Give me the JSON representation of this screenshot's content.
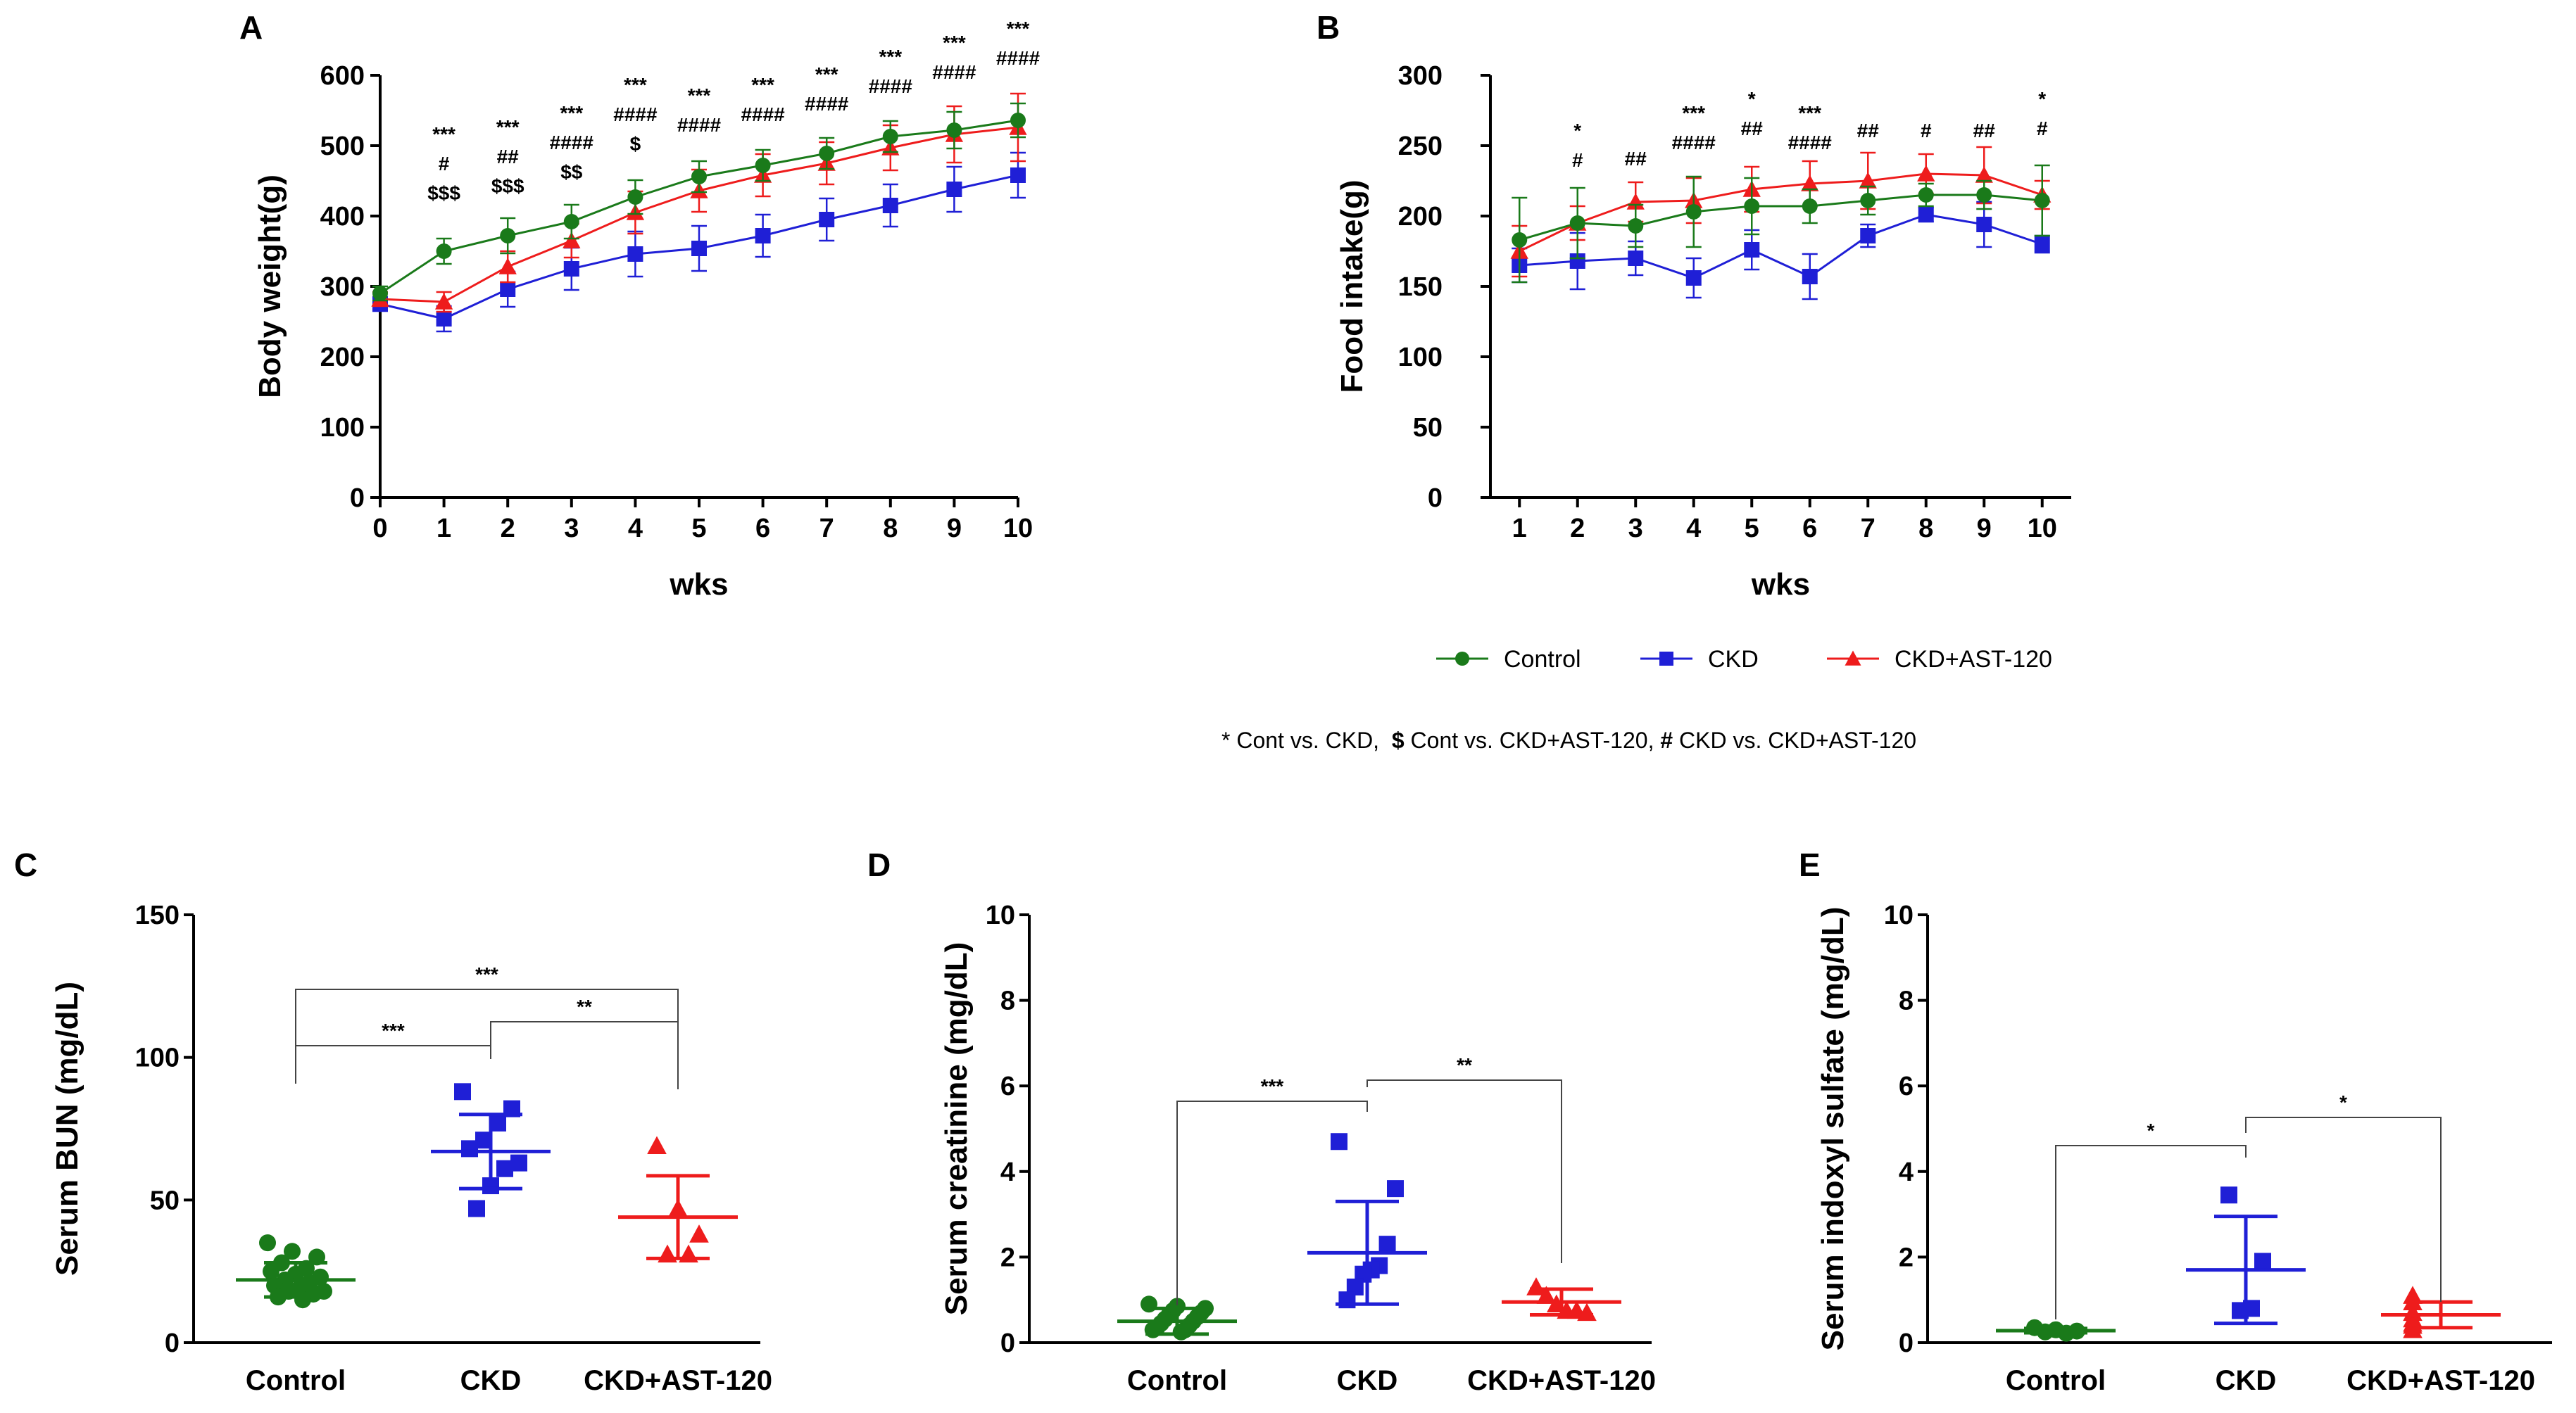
{
  "colors": {
    "control": "#1a7a1a",
    "ckd": "#1f1fd6",
    "ast": "#ee1c1c"
  },
  "legend": {
    "items": [
      {
        "key": "control",
        "label": "Control",
        "marker": "circle"
      },
      {
        "key": "ckd",
        "label": "CKD",
        "marker": "square"
      },
      {
        "key": "ast",
        "label": "CKD+AST-120",
        "marker": "triangle"
      }
    ],
    "note_parts": [
      {
        "text": "* ",
        "bold": false
      },
      {
        "text": "Cont vs. CKD,  ",
        "bold": false
      },
      {
        "text": "$",
        "bold": true
      },
      {
        "text": " Cont vs. CKD+AST-120, ",
        "bold": false
      },
      {
        "text": "#",
        "bold": true
      },
      {
        "text": " CKD vs. CKD+AST-120",
        "bold": false
      }
    ]
  },
  "chart_data": [
    {
      "panel": "A",
      "type": "line",
      "xlabel": "wks",
      "ylabel": "Body weight(g)",
      "xlim": [
        0,
        10
      ],
      "ylim": [
        0,
        600
      ],
      "yticks": [
        0,
        100,
        200,
        300,
        400,
        500,
        600
      ],
      "x": [
        0,
        1,
        2,
        3,
        4,
        5,
        6,
        7,
        8,
        9,
        10
      ],
      "series": [
        {
          "key": "control",
          "name": "Control",
          "values": [
            290,
            350,
            372,
            392,
            427,
            456,
            472,
            489,
            513,
            522,
            536
          ],
          "err": [
            10,
            18,
            25,
            24,
            24,
            22,
            22,
            22,
            22,
            26,
            24
          ]
        },
        {
          "key": "ckd",
          "name": "CKD",
          "values": [
            275,
            254,
            296,
            325,
            346,
            354,
            372,
            395,
            415,
            438,
            458
          ],
          "err": [
            10,
            18,
            25,
            30,
            32,
            32,
            30,
            30,
            30,
            32,
            32
          ]
        },
        {
          "key": "ast",
          "name": "CKD+AST-120",
          "values": [
            282,
            278,
            328,
            365,
            405,
            436,
            458,
            475,
            497,
            516,
            526
          ],
          "err": [
            10,
            14,
            22,
            24,
            30,
            30,
            30,
            30,
            32,
            40,
            48
          ]
        }
      ],
      "annotations": [
        {
          "x": 1,
          "lines": [
            "***",
            "#",
            "$$$"
          ]
        },
        {
          "x": 2,
          "lines": [
            "***",
            "##",
            "$$$"
          ]
        },
        {
          "x": 3,
          "lines": [
            "***",
            "####",
            "$$"
          ]
        },
        {
          "x": 4,
          "lines": [
            "***",
            "####",
            "$"
          ]
        },
        {
          "x": 5,
          "lines": [
            "***",
            "####"
          ]
        },
        {
          "x": 6,
          "lines": [
            "***",
            "####"
          ]
        },
        {
          "x": 7,
          "lines": [
            "***",
            "####"
          ]
        },
        {
          "x": 8,
          "lines": [
            "***",
            "####"
          ]
        },
        {
          "x": 9,
          "lines": [
            "***",
            "####"
          ]
        },
        {
          "x": 10,
          "lines": [
            "***",
            "####"
          ]
        }
      ]
    },
    {
      "panel": "B",
      "type": "line",
      "xlabel": "wks",
      "ylabel": "Food intake(g)",
      "xlim": [
        1,
        10
      ],
      "ylim": [
        0,
        300
      ],
      "yticks": [
        0,
        50,
        100,
        150,
        200,
        250,
        300
      ],
      "x": [
        1,
        2,
        3,
        4,
        5,
        6,
        7,
        8,
        9,
        10
      ],
      "series": [
        {
          "key": "control",
          "name": "Control",
          "values": [
            183,
            195,
            193,
            203,
            207,
            207,
            211,
            215,
            215,
            211
          ],
          "err": [
            30,
            25,
            15,
            25,
            20,
            12,
            10,
            8,
            10,
            25
          ]
        },
        {
          "key": "ckd",
          "name": "CKD",
          "values": [
            165,
            168,
            170,
            156,
            176,
            157,
            186,
            201,
            194,
            180
          ],
          "err": [
            12,
            20,
            12,
            14,
            14,
            16,
            8,
            5,
            16,
            6
          ]
        },
        {
          "key": "ast",
          "name": "CKD+AST-120",
          "values": [
            175,
            195,
            210,
            211,
            219,
            223,
            225,
            230,
            229,
            215
          ],
          "err": [
            18,
            12,
            14,
            16,
            16,
            16,
            20,
            14,
            20,
            10
          ]
        }
      ],
      "annotations": [
        {
          "x": 2,
          "lines": [
            "*",
            "#"
          ]
        },
        {
          "x": 3,
          "lines": [
            "##"
          ]
        },
        {
          "x": 4,
          "lines": [
            "***",
            "####"
          ]
        },
        {
          "x": 5,
          "lines": [
            "*",
            "##"
          ]
        },
        {
          "x": 6,
          "lines": [
            "***",
            "####"
          ]
        },
        {
          "x": 7,
          "lines": [
            "##"
          ]
        },
        {
          "x": 8,
          "lines": [
            "#"
          ]
        },
        {
          "x": 9,
          "lines": [
            "##"
          ]
        },
        {
          "x": 10,
          "lines": [
            "*",
            "#"
          ]
        }
      ]
    },
    {
      "panel": "C",
      "type": "scatter",
      "ylabel": "Serum BUN (mg/dL)",
      "ylim": [
        0,
        150
      ],
      "yticks": [
        0,
        50,
        100,
        150
      ],
      "categories": [
        "Control",
        "CKD",
        "CKD+AST-120"
      ],
      "groups": [
        {
          "key": "control",
          "marker": "circle",
          "mean": 22,
          "sd": 6,
          "points": [
            35,
            32,
            30,
            28,
            26,
            25,
            24,
            23,
            22,
            21,
            20,
            19,
            18,
            18,
            17,
            16,
            15
          ]
        },
        {
          "key": "ckd",
          "marker": "square",
          "mean": 67,
          "sd": 13,
          "points": [
            88,
            82,
            77,
            71,
            68,
            63,
            61,
            55,
            47
          ]
        },
        {
          "key": "ast",
          "marker": "triangle",
          "mean": 44,
          "sd": 14.5,
          "points": [
            69,
            47,
            38,
            31,
            31
          ]
        }
      ],
      "brackets": [
        {
          "from": 0,
          "to": 2,
          "label": "***"
        },
        {
          "from": 0,
          "to": 1,
          "label": "***"
        },
        {
          "from": 1,
          "to": 2,
          "label": "**"
        }
      ]
    },
    {
      "panel": "D",
      "type": "scatter",
      "ylabel": "Serum creatinine (mg/dL)",
      "ylim": [
        0,
        10
      ],
      "yticks": [
        0,
        2,
        4,
        6,
        8,
        10
      ],
      "categories": [
        "Control",
        "CKD",
        "CKD+AST-120"
      ],
      "groups": [
        {
          "key": "control",
          "marker": "circle",
          "mean": 0.5,
          "sd": 0.3,
          "points": [
            0.9,
            0.85,
            0.8,
            0.75,
            0.7,
            0.65,
            0.6,
            0.55,
            0.5,
            0.45,
            0.4,
            0.35,
            0.3,
            0.3,
            0.25
          ]
        },
        {
          "key": "ckd",
          "marker": "square",
          "mean": 2.1,
          "sd": 1.2,
          "points": [
            4.7,
            3.6,
            2.3,
            1.8,
            1.7,
            1.6,
            1.3,
            1.0
          ]
        },
        {
          "key": "ast",
          "marker": "triangle",
          "mean": 0.95,
          "sd": 0.3,
          "points": [
            1.3,
            1.1,
            0.9,
            0.75,
            0.75,
            0.7
          ]
        }
      ],
      "brackets": [
        {
          "from": 0,
          "to": 1,
          "label": "***"
        },
        {
          "from": 1,
          "to": 2,
          "label": "**"
        }
      ]
    },
    {
      "panel": "E",
      "type": "scatter",
      "ylabel": "Serum indoxyl sulfate (mg/dL)",
      "ylim": [
        0,
        10
      ],
      "yticks": [
        0,
        2,
        4,
        6,
        8,
        10
      ],
      "categories": [
        "Control",
        "CKD",
        "CKD+AST-120"
      ],
      "groups": [
        {
          "key": "control",
          "marker": "circle",
          "mean": 0.28,
          "sd": 0.05,
          "points": [
            0.35,
            0.3,
            0.27,
            0.25,
            0.22
          ]
        },
        {
          "key": "ckd",
          "marker": "square",
          "mean": 1.7,
          "sd": 1.25,
          "points": [
            3.45,
            1.9,
            0.8,
            0.75
          ]
        },
        {
          "key": "ast",
          "marker": "triangle",
          "mean": 0.65,
          "sd": 0.3,
          "points": [
            1.1,
            0.95,
            0.7,
            0.55,
            0.45,
            0.4,
            0.3
          ]
        }
      ],
      "brackets": [
        {
          "from": 0,
          "to": 1,
          "label": "*"
        },
        {
          "from": 1,
          "to": 2,
          "label": "*"
        }
      ]
    }
  ]
}
